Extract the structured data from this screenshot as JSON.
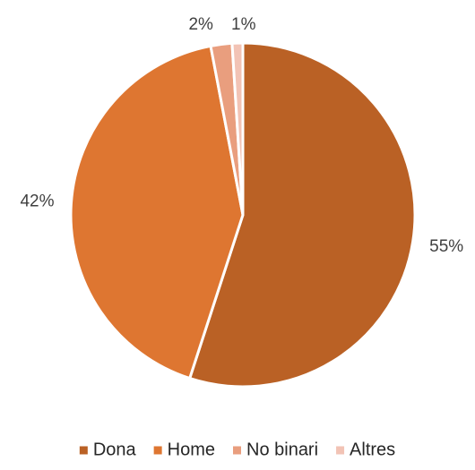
{
  "chart_data": {
    "type": "pie",
    "categories": [
      "Dona",
      "Home",
      "No binari",
      "Altres"
    ],
    "values": [
      55,
      42,
      2,
      1
    ],
    "value_labels": [
      "55%",
      "42%",
      "2%",
      "1%"
    ],
    "colors": [
      "#BA6125",
      "#DE7631",
      "#E99E7E",
      "#F2C3B5"
    ],
    "start_angle_deg": 0,
    "direction": "clockwise",
    "legend_position": "bottom",
    "title": ""
  }
}
